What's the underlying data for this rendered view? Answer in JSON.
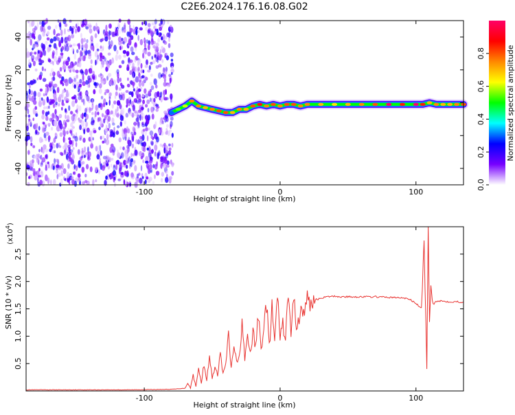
{
  "title": "C2E6.2024.176.16.08.G02",
  "chart_data": [
    {
      "type": "heatmap",
      "xlabel": "Height of straight line (km)",
      "ylabel": "Frequency (Hz)",
      "xlim": [
        -187,
        135
      ],
      "ylim": [
        -50,
        50
      ],
      "xticks": [
        {
          "value": -100,
          "label": "-100"
        },
        {
          "value": 0,
          "label": "0"
        },
        {
          "value": 100,
          "label": "100"
        }
      ],
      "yticks": [
        {
          "value": -40,
          "label": "-40"
        },
        {
          "value": -20,
          "label": "-20"
        },
        {
          "value": 0,
          "label": "0"
        },
        {
          "value": 20,
          "label": "20"
        },
        {
          "value": 40,
          "label": "40"
        }
      ],
      "noise_region_x": [
        -187,
        -79
      ],
      "signal_track": {
        "x": [
          -80,
          -75,
          -70,
          -65,
          -60,
          -55,
          -50,
          -45,
          -40,
          -35,
          -30,
          -25,
          -20,
          -15,
          -10,
          -5,
          0,
          5,
          10,
          15,
          20,
          30,
          40,
          50,
          60,
          70,
          80,
          90,
          100,
          105,
          110,
          115,
          120,
          125,
          130,
          135
        ],
        "y": [
          -6,
          -4,
          -2,
          1,
          -2,
          -3,
          -4,
          -5,
          -6,
          -6,
          -4,
          -4,
          -2,
          -1,
          -2,
          -1,
          -2,
          -1,
          -1,
          -2,
          -1,
          -1,
          -1,
          -1,
          -1,
          -1,
          -1,
          -1,
          -1,
          -1,
          0,
          -1,
          -1,
          -1,
          -1,
          -1
        ],
        "amplitude": [
          0.3,
          0.55,
          0.6,
          0.75,
          0.75,
          0.7,
          0.75,
          0.8,
          0.8,
          0.7,
          0.75,
          0.7,
          0.8,
          0.85,
          0.75,
          0.8,
          0.75,
          0.8,
          0.8,
          0.75,
          0.75,
          0.7,
          0.65,
          0.7,
          0.75,
          0.8,
          1.0,
          0.85,
          1.0,
          0.85,
          0.7,
          0.75,
          0.7,
          0.7,
          0.75,
          0.8
        ]
      },
      "colorbar": {
        "label": "Normalized spectral amplitude",
        "range": [
          0,
          1
        ],
        "ticks": [
          {
            "value": 0.0,
            "label": "0.0"
          },
          {
            "value": 0.2,
            "label": "0.2"
          },
          {
            "value": 0.4,
            "label": "0.4"
          },
          {
            "value": 0.6,
            "label": "0.6"
          },
          {
            "value": 0.8,
            "label": "0.8"
          }
        ],
        "colors": [
          "#ffffff",
          "#7700ff",
          "#0000ff",
          "#00ffff",
          "#00ff00",
          "#ffff00",
          "#ff8800",
          "#ff0000",
          "#ff0066"
        ]
      }
    },
    {
      "type": "line",
      "xlabel": "Height of straight line (km)",
      "ylabel": "SNR (10 * v/v)",
      "y_multiplier": "(x10",
      "y_multiplier_exp": "4",
      "y_multiplier_close": ")",
      "xlim": [
        -187,
        135
      ],
      "ylim": [
        0,
        3.0
      ],
      "xticks": [
        {
          "value": -100,
          "label": "-100"
        },
        {
          "value": 0,
          "label": "0"
        },
        {
          "value": 100,
          "label": "100"
        }
      ],
      "yticks": [
        {
          "value": 0.5,
          "label": "0.5"
        },
        {
          "value": 1.0,
          "label": "1.0"
        },
        {
          "value": 1.5,
          "label": "1.5"
        },
        {
          "value": 2.0,
          "label": "2.0"
        },
        {
          "value": 2.5,
          "label": "2.5"
        }
      ],
      "series": [
        {
          "color": "#e8312e",
          "x": [
            -187,
            -150,
            -110,
            -80,
            -70,
            -68,
            -66,
            -64,
            -62,
            -60,
            -58,
            -56,
            -54,
            -52,
            -50,
            -48,
            -46,
            -44,
            -42,
            -40,
            -38,
            -36,
            -34,
            -32,
            -30,
            -28,
            -26,
            -24,
            -22,
            -20,
            -18,
            -16,
            -14,
            -12,
            -10,
            -8,
            -6,
            -4,
            -2,
            0,
            2,
            4,
            6,
            8,
            10,
            12,
            14,
            16,
            18,
            20,
            22,
            24,
            26,
            28,
            30,
            35,
            40,
            45,
            50,
            60,
            70,
            80,
            90,
            95,
            100,
            104,
            106,
            108,
            109,
            110,
            111,
            112,
            114,
            116,
            120,
            125,
            130,
            135
          ],
          "y": [
            0.02,
            0.02,
            0.02,
            0.03,
            0.05,
            0.15,
            0.05,
            0.3,
            0.08,
            0.4,
            0.15,
            0.5,
            0.2,
            0.6,
            0.25,
            0.4,
            0.3,
            0.7,
            0.3,
            0.5,
            1.0,
            0.4,
            0.85,
            0.5,
            0.6,
            1.3,
            0.55,
            0.95,
            0.7,
            1.05,
            0.8,
            1.4,
            0.75,
            1.2,
            1.6,
            0.8,
            1.5,
            0.9,
            1.7,
            1.0,
            1.2,
            1.0,
            1.75,
            1.05,
            1.7,
            1.2,
            1.35,
            1.45,
            1.5,
            1.65,
            1.6,
            1.62,
            1.68,
            1.67,
            1.7,
            1.72,
            1.73,
            1.72,
            1.72,
            1.72,
            1.72,
            1.71,
            1.7,
            1.68,
            1.6,
            1.5,
            2.7,
            0.45,
            3.0,
            1.2,
            1.9,
            1.65,
            1.62,
            1.65,
            1.64,
            1.63,
            1.63,
            1.62
          ]
        }
      ]
    }
  ]
}
